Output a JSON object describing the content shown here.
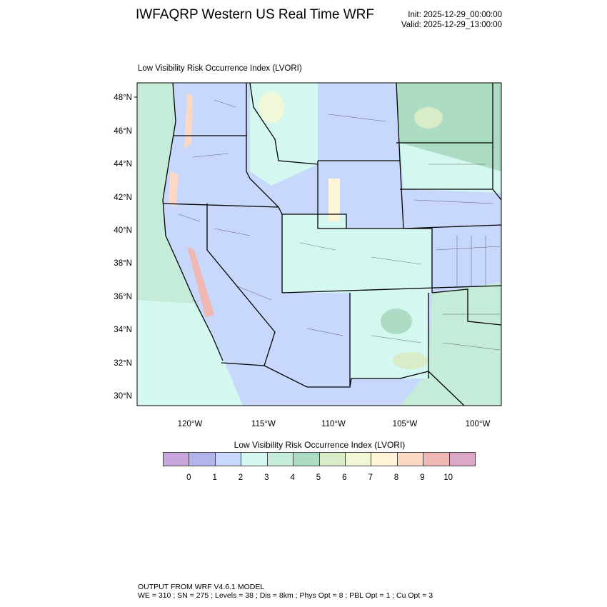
{
  "header": {
    "title": "IWFAQRP Western US Real Time WRF",
    "init": "Init: 2025-12-29_00:00:00",
    "valid": "Valid: 2025-12-29_13:00:00"
  },
  "map": {
    "subtitle": "Low Visibility Risk Occurrence Index   (LVORI)",
    "lat_ticks": [
      "48°N",
      "46°N",
      "44°N",
      "42°N",
      "40°N",
      "38°N",
      "36°N",
      "34°N",
      "32°N",
      "30°N"
    ],
    "lon_ticks": [
      "120°W",
      "115°W",
      "110°W",
      "105°W",
      "100°W"
    ]
  },
  "colorbar": {
    "title": "Low Visibility Risk Occurrence Index  (LVORI)",
    "labels": [
      "0",
      "1",
      "2",
      "3",
      "4",
      "5",
      "6",
      "7",
      "8",
      "9",
      "10"
    ],
    "colors": [
      "#c8a8dc",
      "#b4b4ec",
      "#c8d8fc",
      "#d4f8f0",
      "#c4ecd8",
      "#acdcc4",
      "#d8ecc8",
      "#f0f8d8",
      "#fff4d8",
      "#fcd8c4",
      "#f0b8b4",
      "#dca8c8"
    ]
  },
  "footer": {
    "line1": "OUTPUT FROM WRF V4.6.1 MODEL",
    "line2": "WE = 310 ; SN = 275 ; Levels = 38 ; Dis = 8km ; Phys Opt = 8 ; PBL Opt = 1 ; Cu Opt = 3"
  }
}
